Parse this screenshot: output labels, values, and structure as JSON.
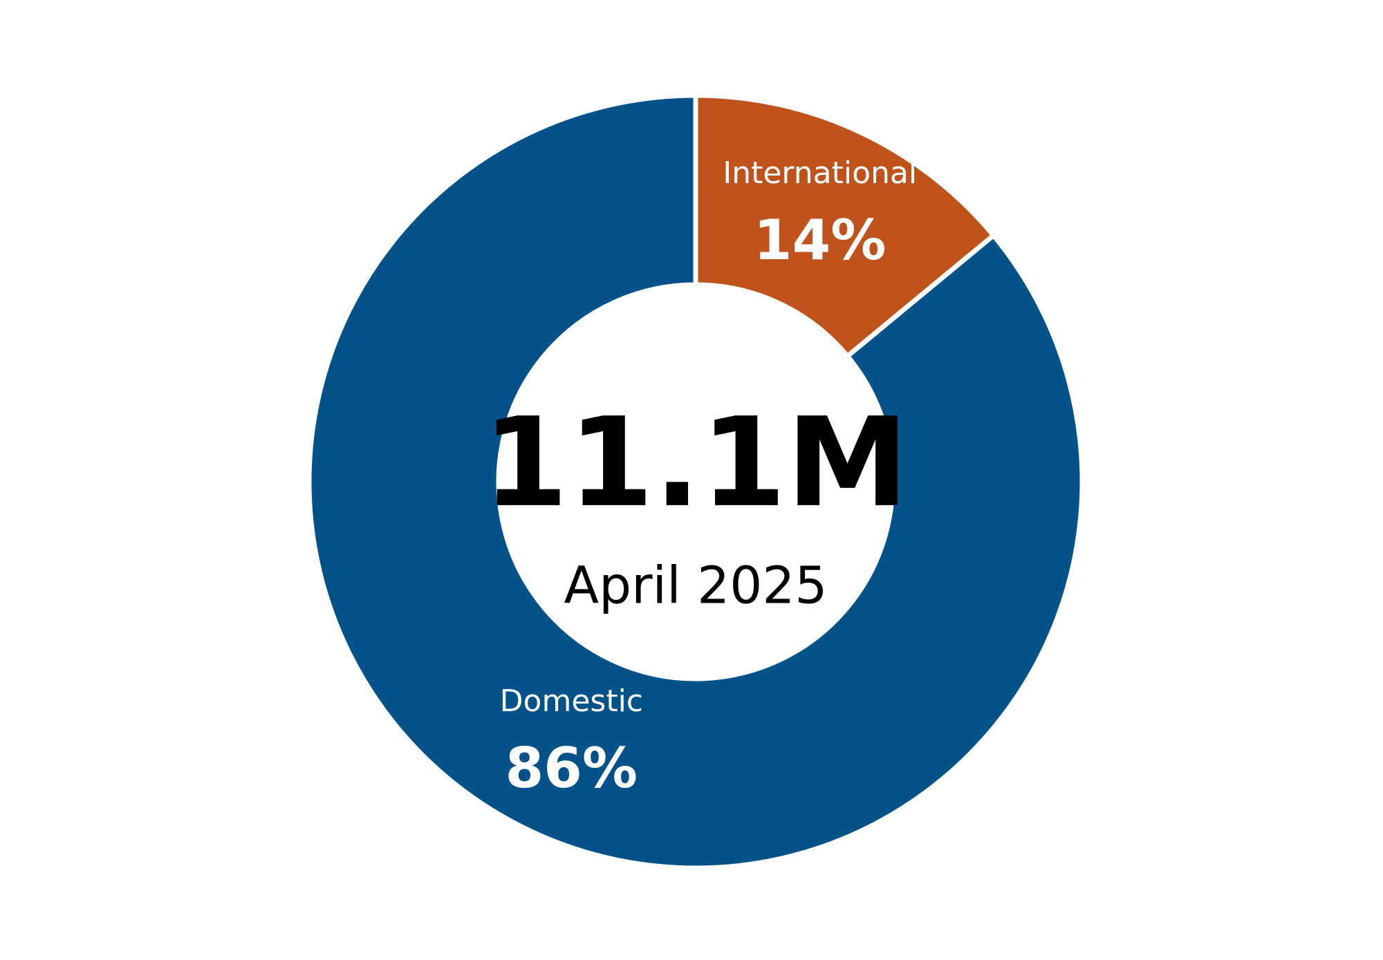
{
  "chart_data": {
    "type": "donut",
    "categories": [
      "International",
      "Domestic"
    ],
    "values": [
      14,
      86
    ],
    "value_labels": [
      "14%",
      "86%"
    ],
    "colors": [
      "#c0531c",
      "#03528a"
    ],
    "center_label": "11.1M",
    "center_sublabel": "April 2025"
  }
}
